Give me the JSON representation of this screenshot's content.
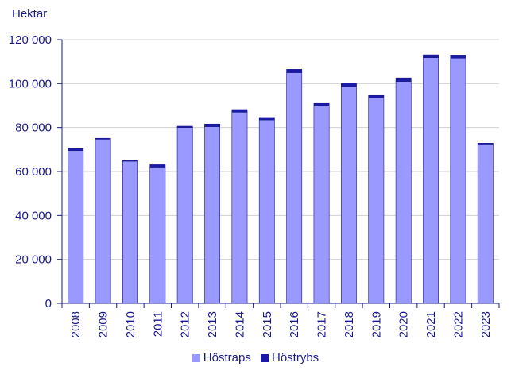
{
  "chart_data": {
    "type": "bar",
    "stacked": true,
    "ylabel": "Hektar",
    "categories": [
      "2008",
      "2009",
      "2010",
      "2011",
      "2012",
      "2013",
      "2014",
      "2015",
      "2016",
      "2017",
      "2018",
      "2019",
      "2020",
      "2021",
      "2022",
      "2023"
    ],
    "series": [
      {
        "name": "Höstraps",
        "color": "#9999ff",
        "values": [
          69500,
          74700,
          64700,
          62000,
          80000,
          80400,
          87000,
          83500,
          105000,
          90000,
          98800,
          93500,
          101000,
          111800,
          111600,
          72500
        ]
      },
      {
        "name": "Höstrybs",
        "color": "#1a1aa6",
        "values": [
          900,
          400,
          300,
          1100,
          600,
          1200,
          1200,
          1100,
          1500,
          1000,
          1300,
          1100,
          1600,
          1300,
          1400,
          400
        ]
      }
    ],
    "ylim": [
      0,
      120000
    ],
    "yticks": [
      0,
      20000,
      40000,
      60000,
      80000,
      100000,
      120000
    ],
    "ytick_labels": [
      "0",
      "20 000",
      "40 000",
      "60 000",
      "80 000",
      "100 000",
      "120 000"
    ],
    "grid": true,
    "legend_position": "bottom"
  }
}
